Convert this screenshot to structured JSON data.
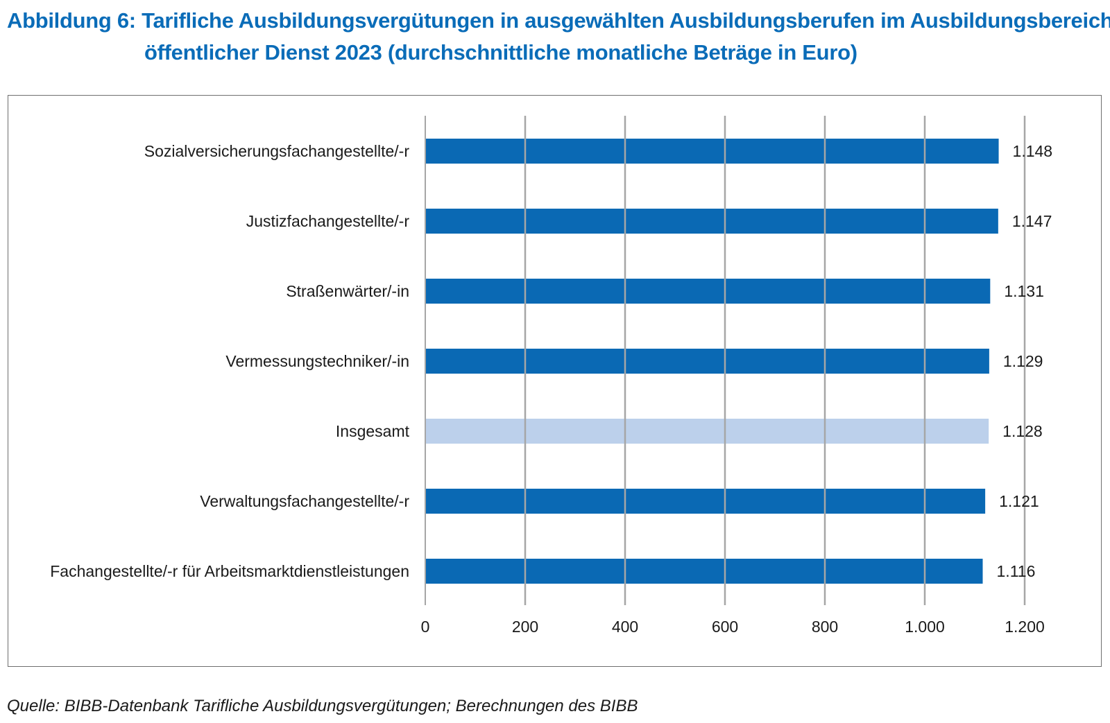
{
  "title": {
    "line1": "Abbildung 6: Tarifliche Ausbildungsvergütungen in ausgewählten Ausbildungsberufen im Ausbildungsbereich",
    "line2": "öffentlicher Dienst 2023 (durchschnittliche monatliche Beträge in Euro)"
  },
  "source": "Quelle: BIBB-Datenbank Tarifliche Ausbildungsvergütungen; Berechnungen des BIBB",
  "colors": {
    "title": "#0a6cb8",
    "bar": "#0a69b4",
    "bar_highlight": "#bcd0eb",
    "grid": "#a6a6a6",
    "frame": "#6e6e6e"
  },
  "chart_data": {
    "type": "bar",
    "orientation": "horizontal",
    "categories": [
      "Sozialversicherungsfachangestellte/-r",
      "Justizfachangestellte/-r",
      "Straßenwärter/-in",
      "Vermessungstechniker/-in",
      "Insgesamt",
      "Verwaltungsfachangestellte/-r",
      "Fachangestellte/-r für Arbeitsmarktdienstleistungen"
    ],
    "values": [
      1148,
      1147,
      1131,
      1129,
      1128,
      1121,
      1116
    ],
    "value_labels": [
      "1.148",
      "1.147",
      "1.131",
      "1.129",
      "1.128",
      "1.121",
      "1.116"
    ],
    "highlight_index": 4,
    "xlim": [
      0,
      1200
    ],
    "x_ticks": [
      0,
      200,
      400,
      600,
      800,
      1000,
      1200
    ],
    "x_tick_labels": [
      "0",
      "200",
      "400",
      "600",
      "800",
      "1.000",
      "1.200"
    ],
    "grid": true,
    "legend": false
  }
}
